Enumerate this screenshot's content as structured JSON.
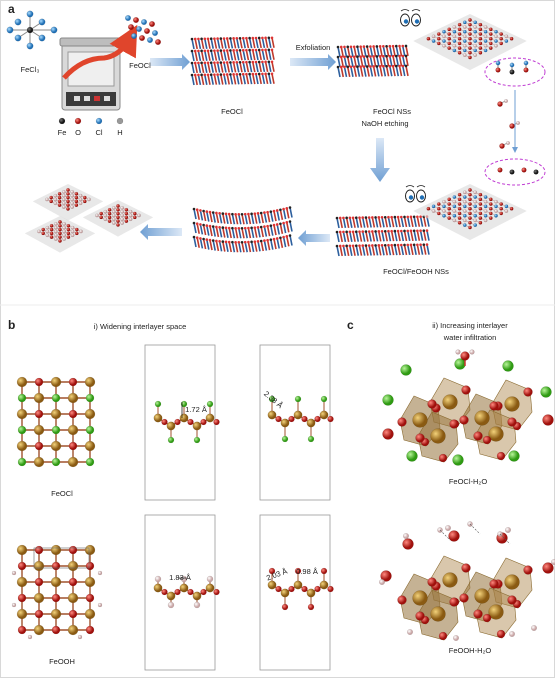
{
  "panel_a": {
    "label": "a",
    "precursor": "FeCl₃",
    "product": "FeOCl",
    "bulk": "FeOCl",
    "step_exfoliation": "Exfoliation",
    "nanosheets": "FeOCl NSs",
    "legend": [
      "Fe",
      "O",
      "Cl",
      "H"
    ],
    "step_etching": "NaOH etching",
    "etched_nanosheets": "FeOCl/FeOOH NSs"
  },
  "panel_b": {
    "label": "b",
    "title": "i) Widening interlayer space",
    "rows": [
      {
        "name": "FeOCl",
        "distances": [
          "1.72 Å",
          "2.38 Å"
        ]
      },
      {
        "name": "FeOOH",
        "distances": [
          "1.83 Å",
          "2.03 Å",
          "0.98 Å"
        ]
      }
    ]
  },
  "panel_c": {
    "label": "c",
    "title": [
      "ii) Increasing interlayer",
      "water infiltration"
    ],
    "structures": [
      "FeOCl-H₂O",
      "FeOOH-H₂O"
    ]
  }
}
